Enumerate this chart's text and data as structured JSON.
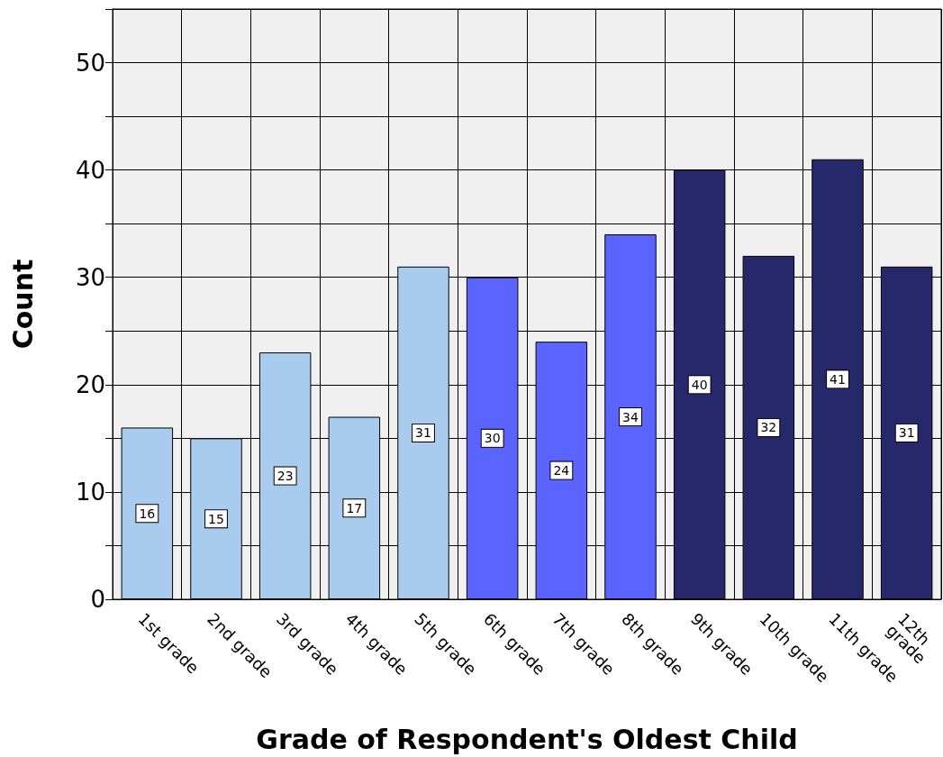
{
  "chart_data": {
    "type": "bar",
    "xlabel": "Grade of Respondent's Oldest Child",
    "ylabel": "Count",
    "categories": [
      "1st grade",
      "2nd grade",
      "3rd grade",
      "4th grade",
      "5th grade",
      "6th grade",
      "7th grade",
      "8th grade",
      "9th grade",
      "10th grade",
      "11th grade",
      "12th grade"
    ],
    "values": [
      16,
      15,
      23,
      17,
      31,
      30,
      24,
      34,
      40,
      32,
      41,
      31
    ],
    "colors": [
      "#a9cbed",
      "#a9cbed",
      "#a9cbed",
      "#a9cbed",
      "#a9cbed",
      "#5b64ff",
      "#5b64ff",
      "#5b64ff",
      "#27276b",
      "#27276b",
      "#27276b",
      "#27276b"
    ],
    "ylim": [
      0,
      55
    ],
    "yticks": [
      0,
      {
        "value": 5,
        "label": null
      },
      10,
      {
        "value": 15,
        "label": null
      },
      20,
      {
        "value": 25,
        "label": null
      },
      30,
      {
        "value": 35,
        "label": null
      },
      40,
      {
        "value": 45,
        "label": null
      },
      50,
      {
        "value": 55,
        "label": null
      }
    ],
    "grid": true,
    "data_labels": true
  }
}
